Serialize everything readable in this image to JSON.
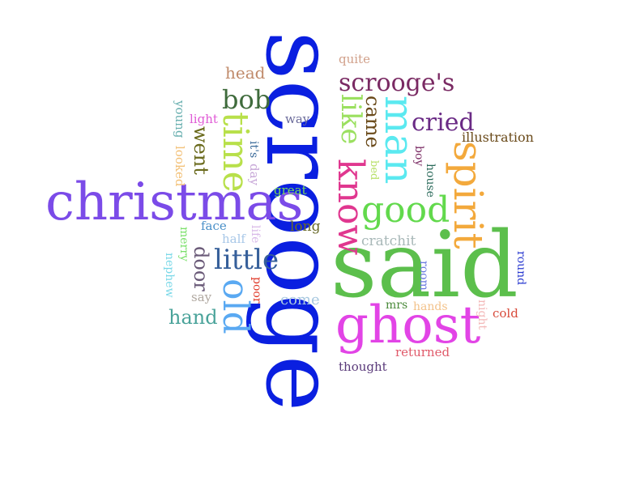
{
  "words": [
    {
      "text": "scrooge",
      "color": "#0a1fe0",
      "orientation": "vertical"
    },
    {
      "text": "said",
      "color": "#5cbf4c",
      "orientation": "horizontal"
    },
    {
      "text": "christmas",
      "color": "#7b4be8",
      "orientation": "horizontal"
    },
    {
      "text": "ghost",
      "color": "#e244e6",
      "orientation": "horizontal"
    },
    {
      "text": "spirit",
      "color": "#f3a93c",
      "orientation": "vertical"
    },
    {
      "text": "man",
      "color": "#5be9f0",
      "orientation": "vertical"
    },
    {
      "text": "know",
      "color": "#e0378f",
      "orientation": "vertical"
    },
    {
      "text": "time",
      "color": "#b8e04a",
      "orientation": "vertical"
    },
    {
      "text": "good",
      "color": "#62d94c",
      "orientation": "horizontal"
    },
    {
      "text": "old",
      "color": "#5aa9f2",
      "orientation": "vertical"
    },
    {
      "text": "like",
      "color": "#9be060",
      "orientation": "vertical"
    },
    {
      "text": "scrooge's",
      "color": "#7a2a63",
      "orientation": "horizontal"
    },
    {
      "text": "little",
      "color": "#365f9a",
      "orientation": "horizontal"
    },
    {
      "text": "bob",
      "color": "#3f6b3c",
      "orientation": "horizontal"
    },
    {
      "text": "cried",
      "color": "#6a2a85",
      "orientation": "horizontal"
    },
    {
      "text": "came",
      "color": "#6a4a1a",
      "orientation": "vertical"
    },
    {
      "text": "went",
      "color": "#6a6a1c",
      "orientation": "vertical"
    },
    {
      "text": "door",
      "color": "#6a5a78",
      "orientation": "vertical"
    },
    {
      "text": "hand",
      "color": "#4aa39a",
      "orientation": "horizontal"
    },
    {
      "text": "head",
      "color": "#c08a6a",
      "orientation": "horizontal"
    },
    {
      "text": "illustration",
      "color": "#6a4a1a",
      "orientation": "horizontal"
    },
    {
      "text": "quite",
      "color": "#d1a08a",
      "orientation": "horizontal"
    },
    {
      "text": "light",
      "color": "#e05ad6",
      "orientation": "horizontal"
    },
    {
      "text": "young",
      "color": "#6ab0b0",
      "orientation": "vertical"
    },
    {
      "text": "looked",
      "color": "#f3c27a",
      "orientation": "vertical"
    },
    {
      "text": "it's",
      "color": "#3a6a9a",
      "orientation": "vertical"
    },
    {
      "text": "day",
      "color": "#c8a8d8",
      "orientation": "vertical"
    },
    {
      "text": "way",
      "color": "#6a6a9a",
      "orientation": "horizontal"
    },
    {
      "text": "great",
      "color": "#7ad85a",
      "orientation": "horizontal"
    },
    {
      "text": "bed",
      "color": "#b8e06a",
      "orientation": "vertical"
    },
    {
      "text": "boy",
      "color": "#7a2a63",
      "orientation": "vertical"
    },
    {
      "text": "house",
      "color": "#2a6a5a",
      "orientation": "vertical"
    },
    {
      "text": "face",
      "color": "#4a90c8",
      "orientation": "horizontal"
    },
    {
      "text": "long",
      "color": "#6a6a2a",
      "orientation": "horizontal"
    },
    {
      "text": "half",
      "color": "#a8c8e8",
      "orientation": "horizontal"
    },
    {
      "text": "life",
      "color": "#d8b8e8",
      "orientation": "vertical"
    },
    {
      "text": "merry",
      "color": "#7ae06a",
      "orientation": "vertical"
    },
    {
      "text": "nephew",
      "color": "#7ad8e8",
      "orientation": "vertical"
    },
    {
      "text": "say",
      "color": "#b0a8a0",
      "orientation": "horizontal"
    },
    {
      "text": "poor",
      "color": "#e03a2a",
      "orientation": "vertical"
    },
    {
      "text": "come",
      "color": "#a8c8e0",
      "orientation": "horizontal"
    },
    {
      "text": "cratchit",
      "color": "#a8b8b8",
      "orientation": "horizontal"
    },
    {
      "text": "room",
      "color": "#6a7ae0",
      "orientation": "vertical"
    },
    {
      "text": "mrs",
      "color": "#4a8a3a",
      "orientation": "horizontal"
    },
    {
      "text": "hands",
      "color": "#f3c28a",
      "orientation": "horizontal"
    },
    {
      "text": "night",
      "color": "#f3b8b8",
      "orientation": "vertical"
    },
    {
      "text": "round",
      "color": "#2a3ad0",
      "orientation": "vertical"
    },
    {
      "text": "cold",
      "color": "#d84a3a",
      "orientation": "horizontal"
    },
    {
      "text": "returned",
      "color": "#e05a6a",
      "orientation": "horizontal"
    },
    {
      "text": "thought",
      "color": "#5a3a7a",
      "orientation": "horizontal"
    }
  ]
}
